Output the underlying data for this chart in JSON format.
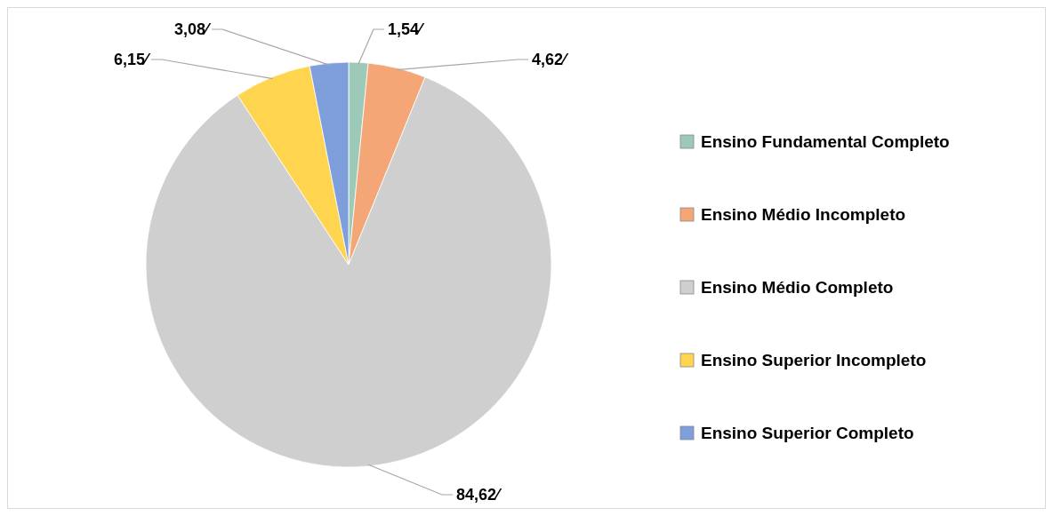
{
  "chart_data": {
    "type": "pie",
    "categories": [
      "Ensino Fundamental Completo",
      "Ensino Médio Incompleto",
      "Ensino Médio Completo",
      "Ensino Superior Incompleto",
      "Ensino Superior Completo"
    ],
    "values": [
      1.54,
      4.62,
      84.62,
      6.15,
      3.08
    ],
    "colors": [
      "#9cc9b8",
      "#f4a677",
      "#cfcfcf",
      "#ffd54f",
      "#7f9fdc"
    ],
    "value_labels": [
      "1,54⁄",
      "4,62⁄",
      "84,62⁄",
      "6,15⁄",
      "3,08⁄"
    ],
    "legend": "right"
  }
}
